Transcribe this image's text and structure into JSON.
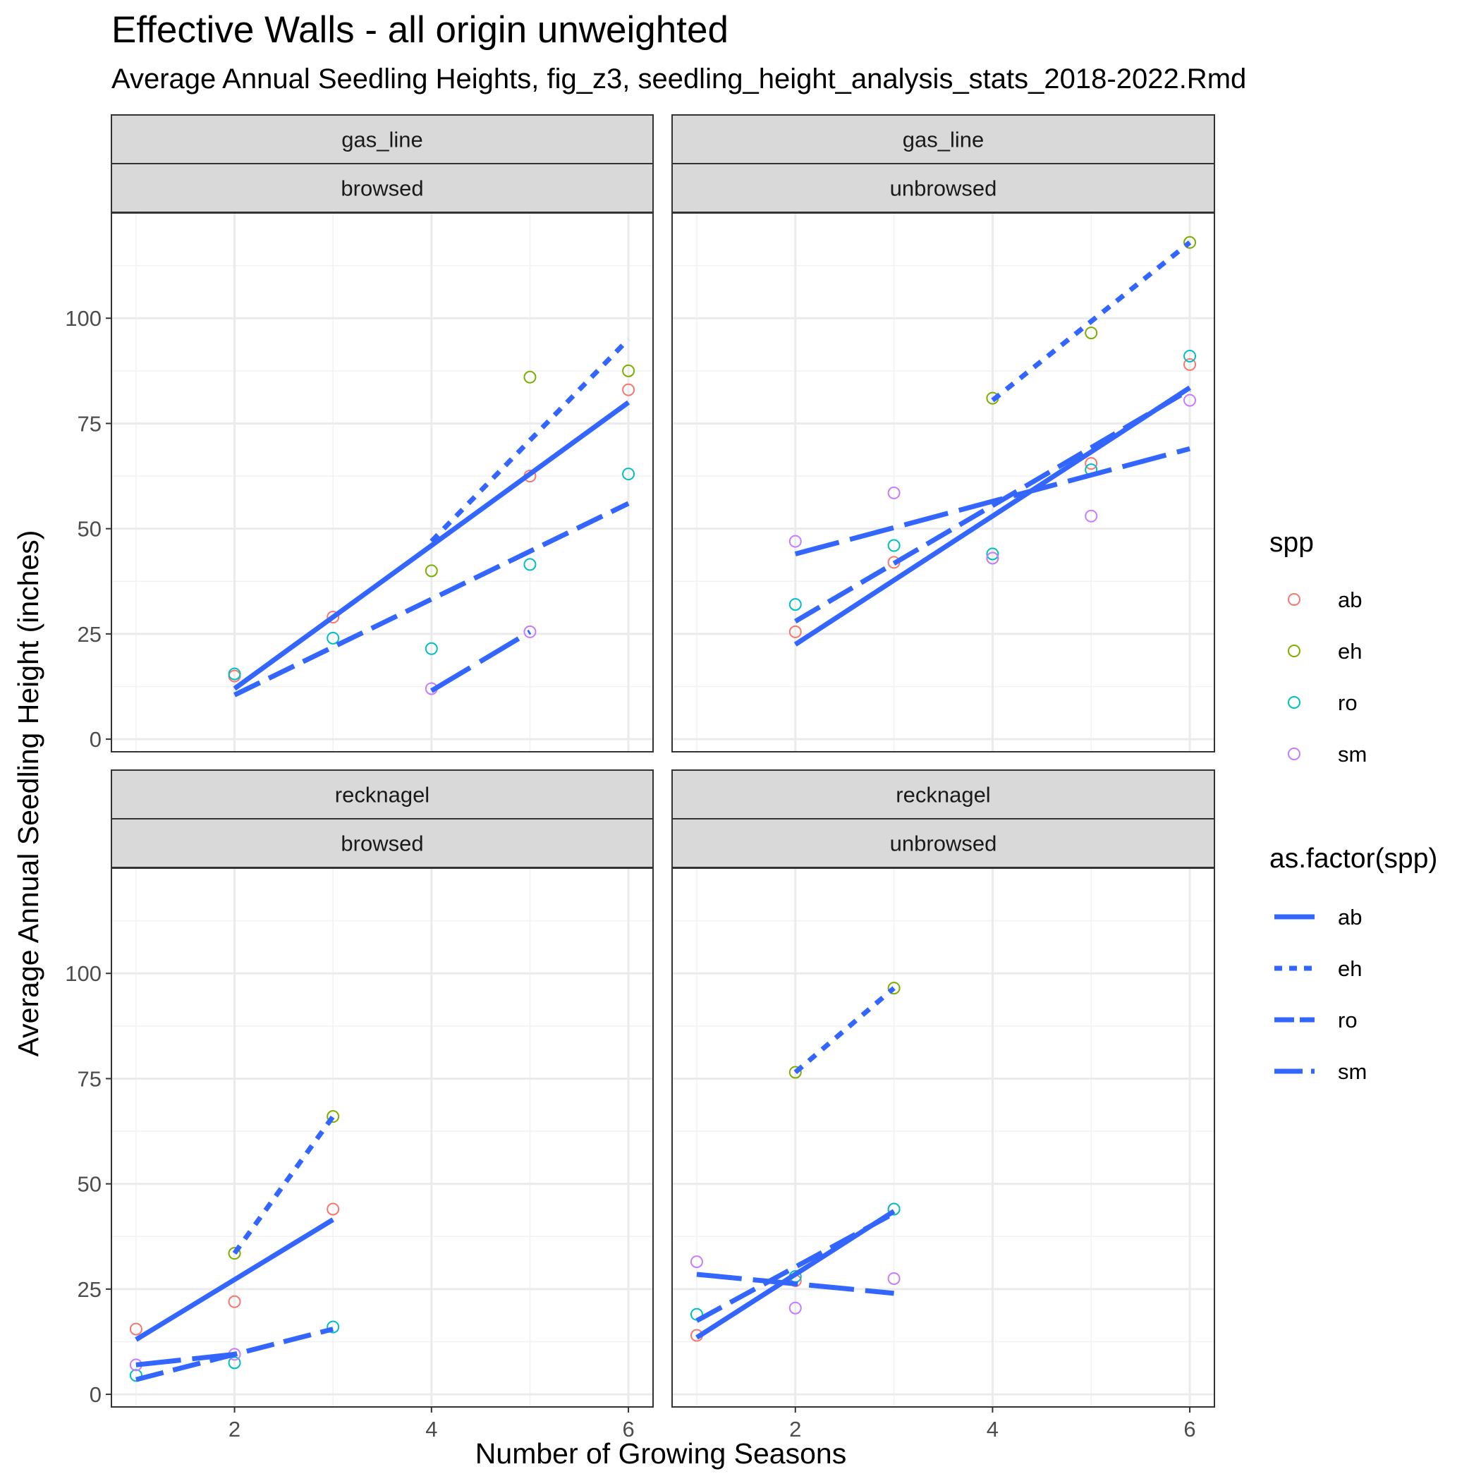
{
  "chart_data": {
    "type": "scatter",
    "title": "Effective Walls - all origin unweighted",
    "subtitle": "Average Annual Seedling Heights, fig_z3, seedling_height_analysis_stats_2018-2022.Rmd",
    "xlabel": "Number of Growing Seasons",
    "ylabel": "Average Annual Seedling Height (inches)",
    "xlim": [
      0.75,
      6.25
    ],
    "ylim": [
      -3,
      125
    ],
    "x_ticks": [
      2,
      4,
      6
    ],
    "y_ticks": [
      0,
      25,
      50,
      75,
      100
    ],
    "grid": true,
    "line_color": "#3366FF",
    "species_colors": {
      "ab": "#F8766D",
      "eh": "#7CAE00",
      "ro": "#00BFC4",
      "sm": "#C77CFF"
    },
    "legend_placement": "right",
    "legends": [
      {
        "title": "spp",
        "kind": "points",
        "entries": [
          "ab",
          "eh",
          "ro",
          "sm"
        ]
      },
      {
        "title": "as.factor(spp)",
        "kind": "lines",
        "entries": [
          "ab",
          "eh",
          "ro",
          "sm"
        ]
      }
    ],
    "line_styles": {
      "ab": "solid",
      "eh": "dotted",
      "ro": "dashed",
      "sm": "longdash"
    },
    "panels": [
      {
        "site": "gas_line",
        "browse": "browsed",
        "points": {
          "ab": [
            [
              2,
              15
            ],
            [
              3,
              29
            ],
            [
              5,
              62.5
            ],
            [
              6,
              83
            ]
          ],
          "eh": [
            [
              4,
              40
            ],
            [
              5,
              86
            ],
            [
              6,
              87.5
            ]
          ],
          "ro": [
            [
              2,
              15.5
            ],
            [
              3,
              24
            ],
            [
              4,
              21.5
            ],
            [
              5,
              41.5
            ],
            [
              6,
              63
            ]
          ],
          "sm": [
            [
              4,
              12
            ],
            [
              5,
              25.5
            ]
          ]
        },
        "fits": {
          "ab": [
            [
              2,
              12
            ],
            [
              6,
              80
            ]
          ],
          "eh": [
            [
              4,
              47
            ],
            [
              6,
              95
            ]
          ],
          "ro": [
            [
              2,
              10.5
            ],
            [
              6,
              56
            ]
          ],
          "sm": [
            [
              4,
              11.5
            ],
            [
              5,
              25.5
            ]
          ]
        }
      },
      {
        "site": "gas_line",
        "browse": "unbrowsed",
        "points": {
          "ab": [
            [
              2,
              25.5
            ],
            [
              3,
              42
            ],
            [
              4,
              43
            ],
            [
              5,
              65.5
            ],
            [
              6,
              89
            ]
          ],
          "eh": [
            [
              4,
              81
            ],
            [
              5,
              96.5
            ],
            [
              6,
              118
            ]
          ],
          "ro": [
            [
              2,
              32
            ],
            [
              3,
              46
            ],
            [
              4,
              44
            ],
            [
              5,
              64
            ],
            [
              6,
              91
            ]
          ],
          "sm": [
            [
              2,
              47
            ],
            [
              3,
              58.5
            ],
            [
              4,
              43
            ],
            [
              5,
              53
            ],
            [
              6,
              80.5
            ]
          ]
        },
        "fits": {
          "ab": [
            [
              2,
              22.5
            ],
            [
              6,
              83.5
            ]
          ],
          "eh": [
            [
              4,
              80.5
            ],
            [
              6,
              118
            ]
          ],
          "ro": [
            [
              2,
              28
            ],
            [
              6,
              83
            ]
          ],
          "sm": [
            [
              2,
              44
            ],
            [
              6,
              69
            ]
          ]
        }
      },
      {
        "site": "recknagel",
        "browse": "browsed",
        "points": {
          "ab": [
            [
              1,
              15.5
            ],
            [
              2,
              22
            ],
            [
              3,
              44
            ]
          ],
          "eh": [
            [
              2,
              33.5
            ],
            [
              3,
              66
            ]
          ],
          "ro": [
            [
              1,
              4.5
            ],
            [
              2,
              7.5
            ],
            [
              3,
              16
            ]
          ],
          "sm": [
            [
              1,
              7
            ],
            [
              2,
              9.5
            ]
          ]
        },
        "fits": {
          "ab": [
            [
              1,
              13
            ],
            [
              3,
              41.5
            ]
          ],
          "eh": [
            [
              2,
              33.5
            ],
            [
              3,
              66
            ]
          ],
          "ro": [
            [
              1,
              3.5
            ],
            [
              3,
              15.5
            ]
          ],
          "sm": [
            [
              1,
              7
            ],
            [
              2,
              9.5
            ]
          ]
        }
      },
      {
        "site": "recknagel",
        "browse": "unbrowsed",
        "points": {
          "ab": [
            [
              1,
              14
            ],
            [
              2,
              27
            ],
            [
              3,
              44
            ]
          ],
          "eh": [
            [
              2,
              76.5
            ],
            [
              3,
              96.5
            ]
          ],
          "ro": [
            [
              1,
              19
            ],
            [
              2,
              28
            ],
            [
              3,
              44
            ]
          ],
          "sm": [
            [
              1,
              31.5
            ],
            [
              2,
              20.5
            ],
            [
              3,
              27.5
            ]
          ]
        },
        "fits": {
          "ab": [
            [
              1,
              13.5
            ],
            [
              3,
              43.5
            ]
          ],
          "eh": [
            [
              2,
              76.5
            ],
            [
              3,
              96.5
            ]
          ],
          "ro": [
            [
              1,
              17.5
            ],
            [
              3,
              43
            ]
          ],
          "sm": [
            [
              1,
              28.5
            ],
            [
              3,
              24
            ]
          ]
        }
      }
    ]
  }
}
